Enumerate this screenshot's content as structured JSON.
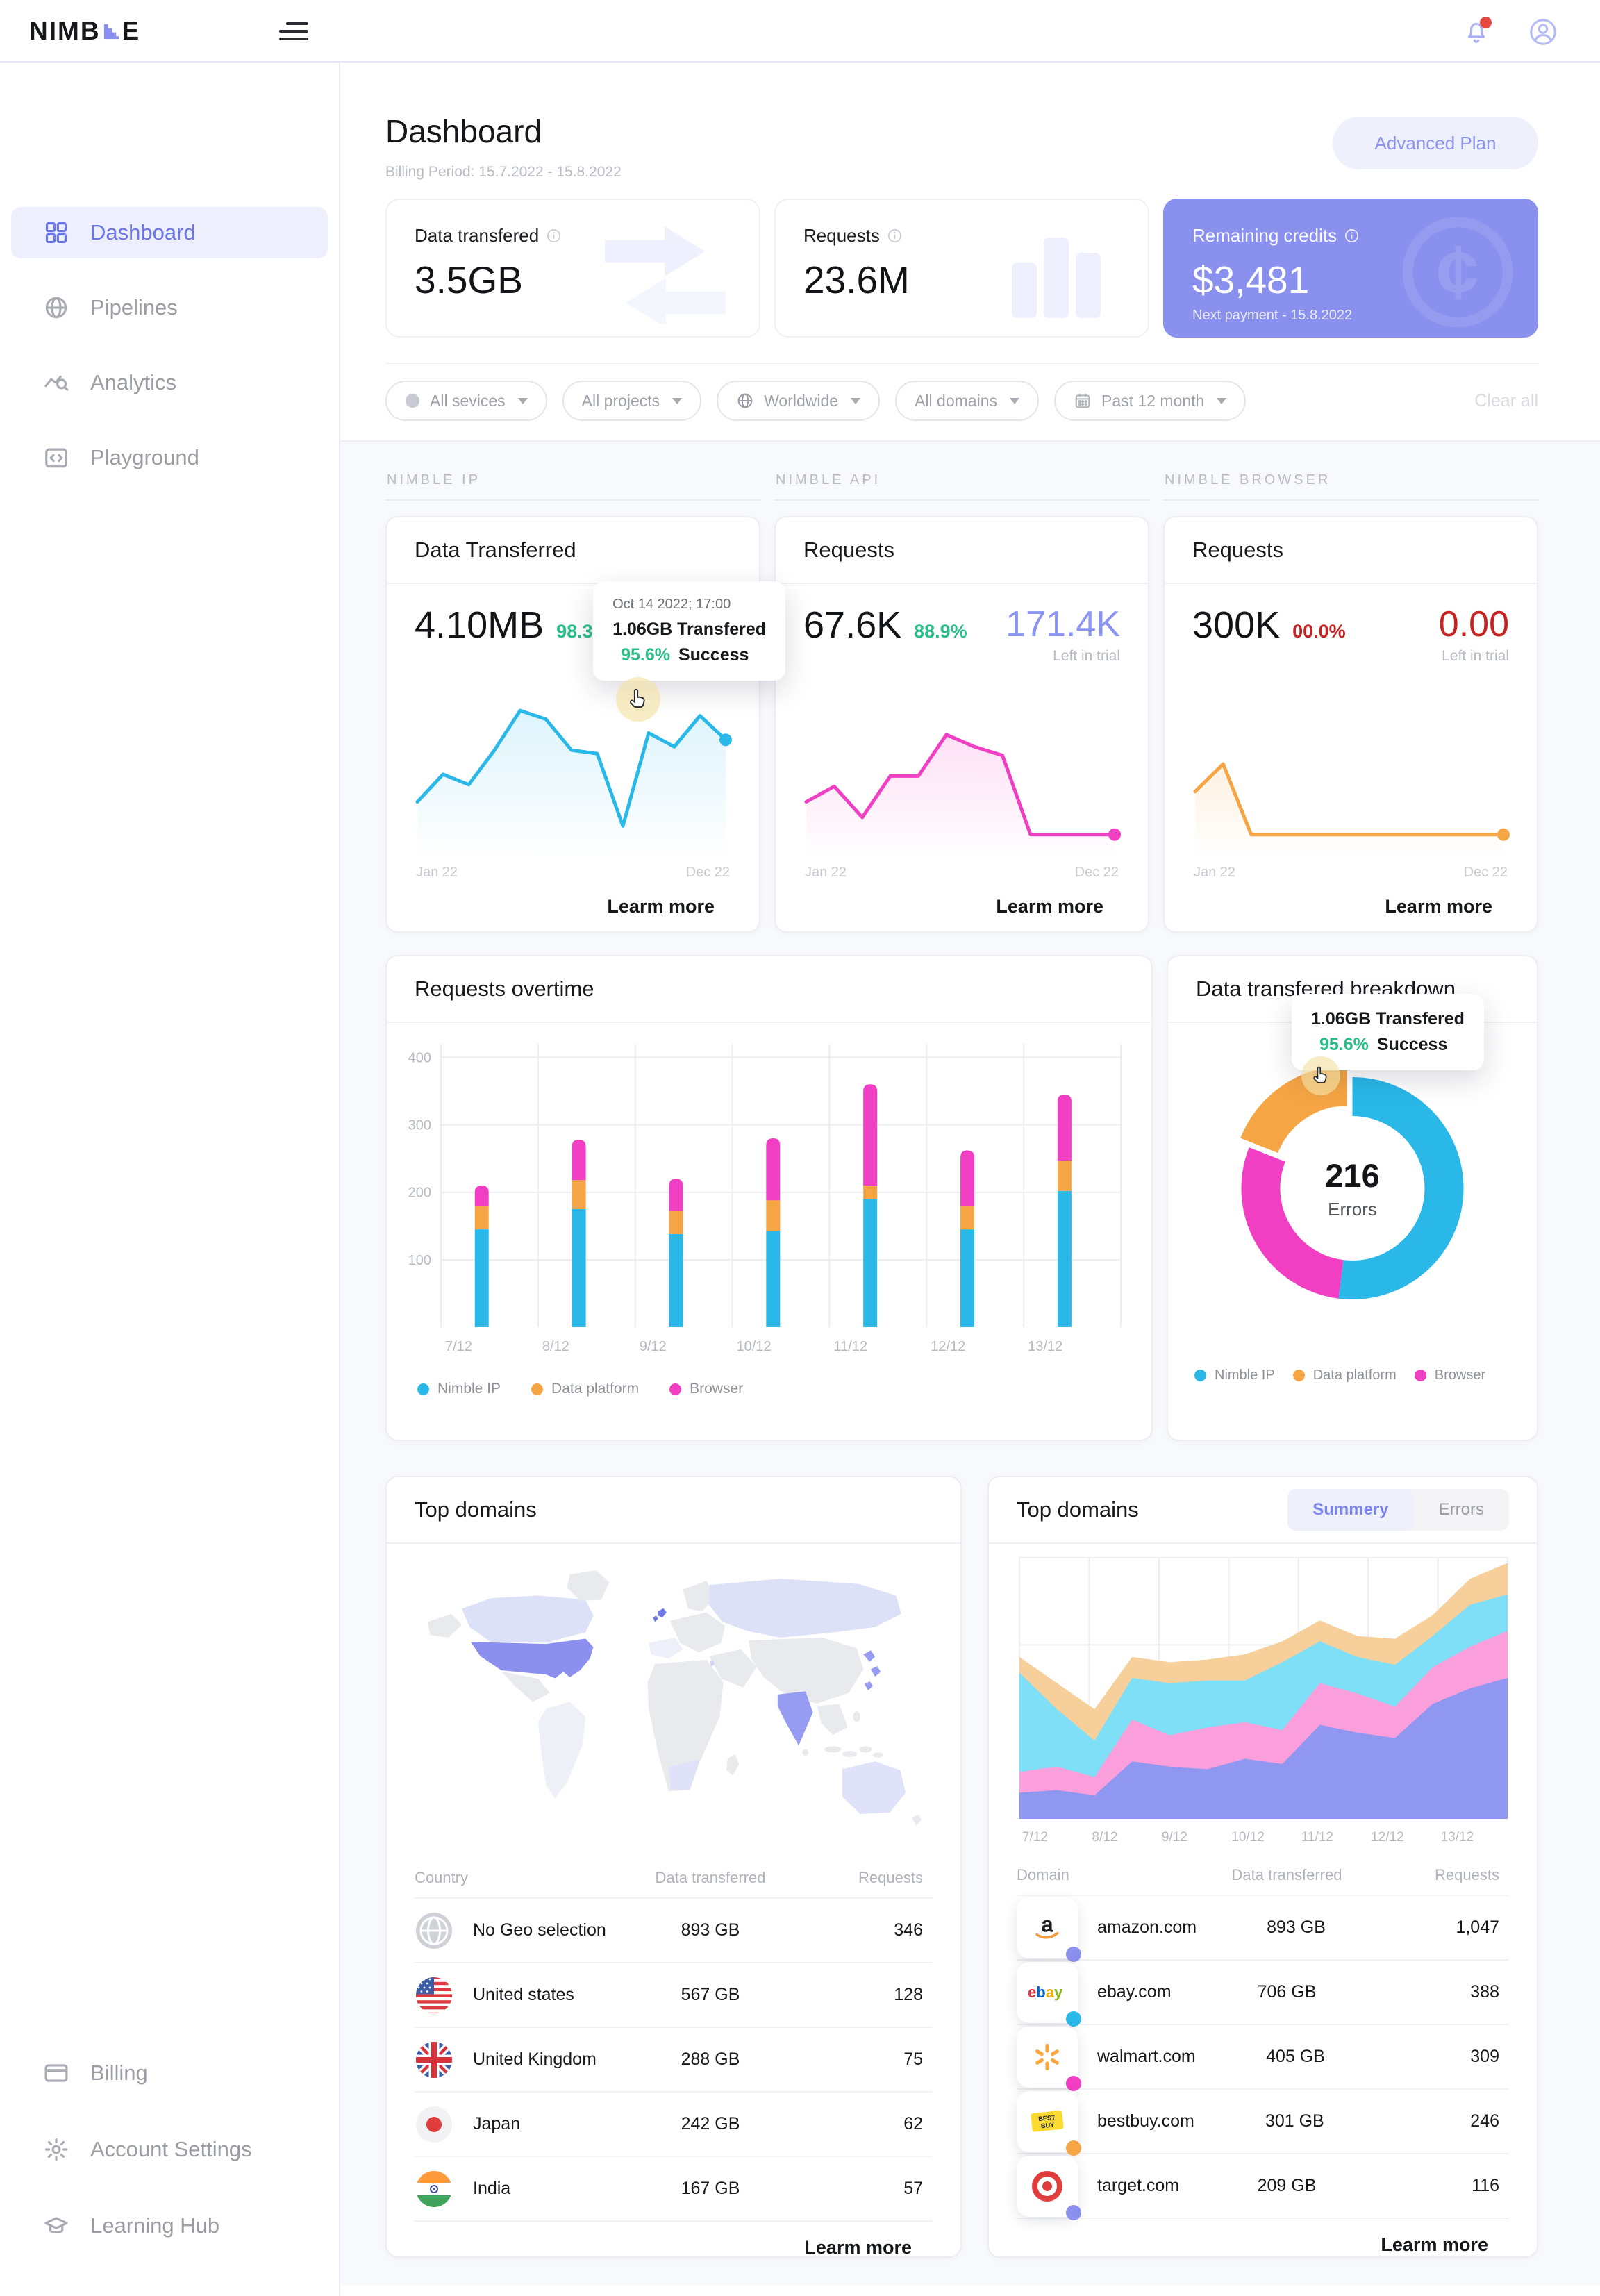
{
  "colors": {
    "accent": "#8b90ee",
    "accent_dark": "#6f79e8",
    "cyan": "#29b8e8",
    "magenta": "#f03fc2",
    "orange": "#f6a544",
    "green": "#2bbe87",
    "red": "#c62222",
    "area_purple": "#9097f0",
    "area_pink": "#fa9edc",
    "area_cyan": "#7fdff6",
    "area_orange": "#f7cf9b",
    "grid": "#ededf2",
    "axis_text": "#b7bac2"
  },
  "topbar": {
    "logo_pre": "NIMB",
    "logo_post": "E"
  },
  "sidebar": {
    "items": [
      {
        "label": "Dashboard",
        "active": true
      },
      {
        "label": "Pipelines",
        "active": false
      },
      {
        "label": "Analytics",
        "active": false
      },
      {
        "label": "Playground",
        "active": false
      }
    ],
    "bottom_items": [
      {
        "label": "Billing"
      },
      {
        "label": "Account Settings"
      },
      {
        "label": "Learning Hub"
      }
    ]
  },
  "page": {
    "title": "Dashboard",
    "billing_period": "Billing Period: 15.7.2022 - 15.8.2022",
    "plan_badge": "Advanced Plan"
  },
  "stats": [
    {
      "label": "Data transfered",
      "value": "3.5GB"
    },
    {
      "label": "Requests",
      "value": "23.6M"
    },
    {
      "label": "Remaining credits",
      "value": "$3,481",
      "subtext": "Next payment - 15.8.2022"
    }
  ],
  "filters": {
    "pills": [
      {
        "label": "All sevices"
      },
      {
        "label": "All projects"
      },
      {
        "label": "Worldwide"
      },
      {
        "label": "All domains"
      },
      {
        "label": "Past 12 month"
      }
    ],
    "clear_label": "Clear all"
  },
  "products": [
    {
      "section": "NIMBLE IP",
      "title": "Data Transferred",
      "value": "4.10MB",
      "pct": "98.3%",
      "x_start": "Jan 22",
      "x_end": "Dec 22",
      "learn_more": "Learm more",
      "tooltip": {
        "date": "Oct 14 2022; 17:00",
        "line": "1.06GB Transfered",
        "pct": "95.6%",
        "pct_label": "Success"
      },
      "line": [
        30,
        46,
        40,
        60,
        83,
        78,
        60,
        58,
        16,
        70,
        62,
        80,
        66
      ]
    },
    {
      "section": "NIMBLE API",
      "title": "Requests",
      "value": "67.6K",
      "pct": "88.9%",
      "side_value": "171.4K",
      "side_label": "Left in trial",
      "x_start": "Jan 22",
      "x_end": "Dec 22",
      "learn_more": "Learm more",
      "line": [
        30,
        39,
        21,
        45,
        45,
        69,
        62,
        57,
        11,
        11,
        11,
        11
      ]
    },
    {
      "section": "NIMBLE BROWSER",
      "title": "Requests",
      "value": "300K",
      "pct": "00.0%",
      "side_value": "0.00",
      "side_label": "Left in trial",
      "x_start": "Jan 22",
      "x_end": "Dec 22",
      "learn_more": "Learm more",
      "line": [
        36,
        52,
        11,
        11,
        11,
        11,
        11,
        11,
        11,
        11,
        11,
        11
      ]
    }
  ],
  "overtime": {
    "title": "Requests overtime",
    "type": "bar",
    "y_ticks": [
      100,
      200,
      300,
      400
    ],
    "y_max": 420,
    "categories": [
      "7/12",
      "8/12",
      "9/12",
      "10/12",
      "11/12",
      "12/12",
      "13/12"
    ],
    "series": [
      {
        "name": "Nimble IP",
        "color": "cyan",
        "values": [
          145,
          175,
          138,
          143,
          190,
          145,
          202
        ]
      },
      {
        "name": "Data platform",
        "color": "orange",
        "values": [
          35,
          43,
          34,
          45,
          20,
          35,
          45
        ]
      },
      {
        "name": "Browser",
        "color": "magenta",
        "values": [
          30,
          60,
          48,
          92,
          150,
          82,
          98
        ]
      }
    ]
  },
  "breakdown": {
    "title": "Data transfered breakdown",
    "type": "donut",
    "center_value": "216",
    "center_label": "Errors",
    "tooltip": {
      "line": "1.06GB Transfered",
      "pct": "95.6%",
      "pct_label": "Success"
    },
    "slices": [
      {
        "name": "Nimble IP",
        "color": "cyan",
        "pct": 52,
        "highlight": false
      },
      {
        "name": "Browser",
        "color": "magenta",
        "pct": 29,
        "highlight": false
      },
      {
        "name": "Data platform",
        "color": "orange",
        "pct": 19,
        "highlight": true
      }
    ],
    "legend": [
      "Nimble IP",
      "Data platform",
      "Browser"
    ]
  },
  "geo": {
    "title": "Top domains",
    "columns": [
      "Country",
      "Data transferred",
      "Requests"
    ],
    "rows": [
      {
        "name": "No Geo selection",
        "flag": "globe",
        "data": "893 GB",
        "requests": "346"
      },
      {
        "name": "United states",
        "flag": "us",
        "data": "567 GB",
        "requests": "128"
      },
      {
        "name": "United Kingdom",
        "flag": "uk",
        "data": "288 GB",
        "requests": "75"
      },
      {
        "name": "Japan",
        "flag": "jp",
        "data": "242 GB",
        "requests": "62"
      },
      {
        "name": "India",
        "flag": "in",
        "data": "167 GB",
        "requests": "57"
      }
    ],
    "learn_more": "Learm more"
  },
  "domains": {
    "title": "Top domains",
    "tabs": [
      {
        "label": "Summery",
        "active": true
      },
      {
        "label": "Errors",
        "active": false
      }
    ],
    "type": "area",
    "x_labels": [
      "7/12",
      "8/12",
      "9/12",
      "10/12",
      "11/12",
      "12/12",
      "13/12"
    ],
    "area_series": [
      {
        "name": "purple",
        "values": [
          10,
          11,
          9,
          22,
          20,
          19,
          23,
          21,
          36,
          33,
          31,
          44,
          50,
          54
        ]
      },
      {
        "name": "pink",
        "values": [
          8,
          9,
          7,
          16,
          12,
          16,
          14,
          13,
          16,
          15,
          12,
          14,
          16,
          18
        ]
      },
      {
        "name": "cyan",
        "values": [
          38,
          22,
          14,
          16,
          20,
          18,
          16,
          26,
          16,
          14,
          16,
          12,
          16,
          14
        ]
      },
      {
        "name": "orange",
        "values": [
          6,
          10,
          12,
          8,
          8,
          8,
          10,
          8,
          8,
          8,
          10,
          8,
          10,
          12
        ]
      }
    ],
    "columns": [
      "Domain",
      "Data transferred",
      "Requests"
    ],
    "rows": [
      {
        "name": "amazon.com",
        "icon": "amazon",
        "dot": "#8b90ee",
        "data": "893 GB",
        "requests": "1,047"
      },
      {
        "name": "ebay.com",
        "icon": "ebay",
        "dot": "#29b8e8",
        "data": "706 GB",
        "requests": "388"
      },
      {
        "name": "walmart.com",
        "icon": "walmart",
        "dot": "#f03fc2",
        "data": "405 GB",
        "requests": "309"
      },
      {
        "name": "bestbuy.com",
        "icon": "bestbuy",
        "dot": "#f6a544",
        "data": "301 GB",
        "requests": "246"
      },
      {
        "name": "target.com",
        "icon": "target",
        "dot": "#8b90ee",
        "data": "209 GB",
        "requests": "116"
      }
    ],
    "learn_more": "Learm more"
  }
}
